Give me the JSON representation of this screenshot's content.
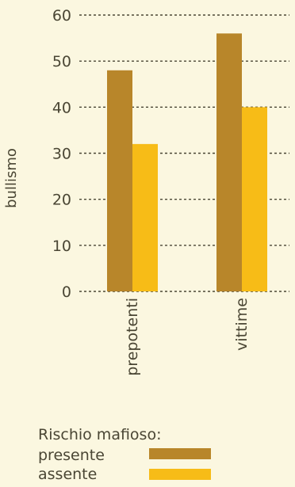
{
  "chart_data": {
    "type": "bar",
    "categories": [
      "prepotenti",
      "vittime"
    ],
    "series": [
      {
        "name": "presente",
        "values": [
          48,
          56
        ]
      },
      {
        "name": "assente",
        "values": [
          32,
          40
        ]
      }
    ],
    "ylabel": "bullismo",
    "xlabel": "",
    "ylim": [
      0,
      60
    ],
    "yticks": [
      0,
      10,
      20,
      30,
      40,
      50,
      60
    ],
    "grid": true,
    "legend": {
      "title": "Rischio mafioso:",
      "position": "bottom-left"
    }
  },
  "colors": {
    "presente": "#b8862a",
    "assente": "#f7bc17"
  }
}
